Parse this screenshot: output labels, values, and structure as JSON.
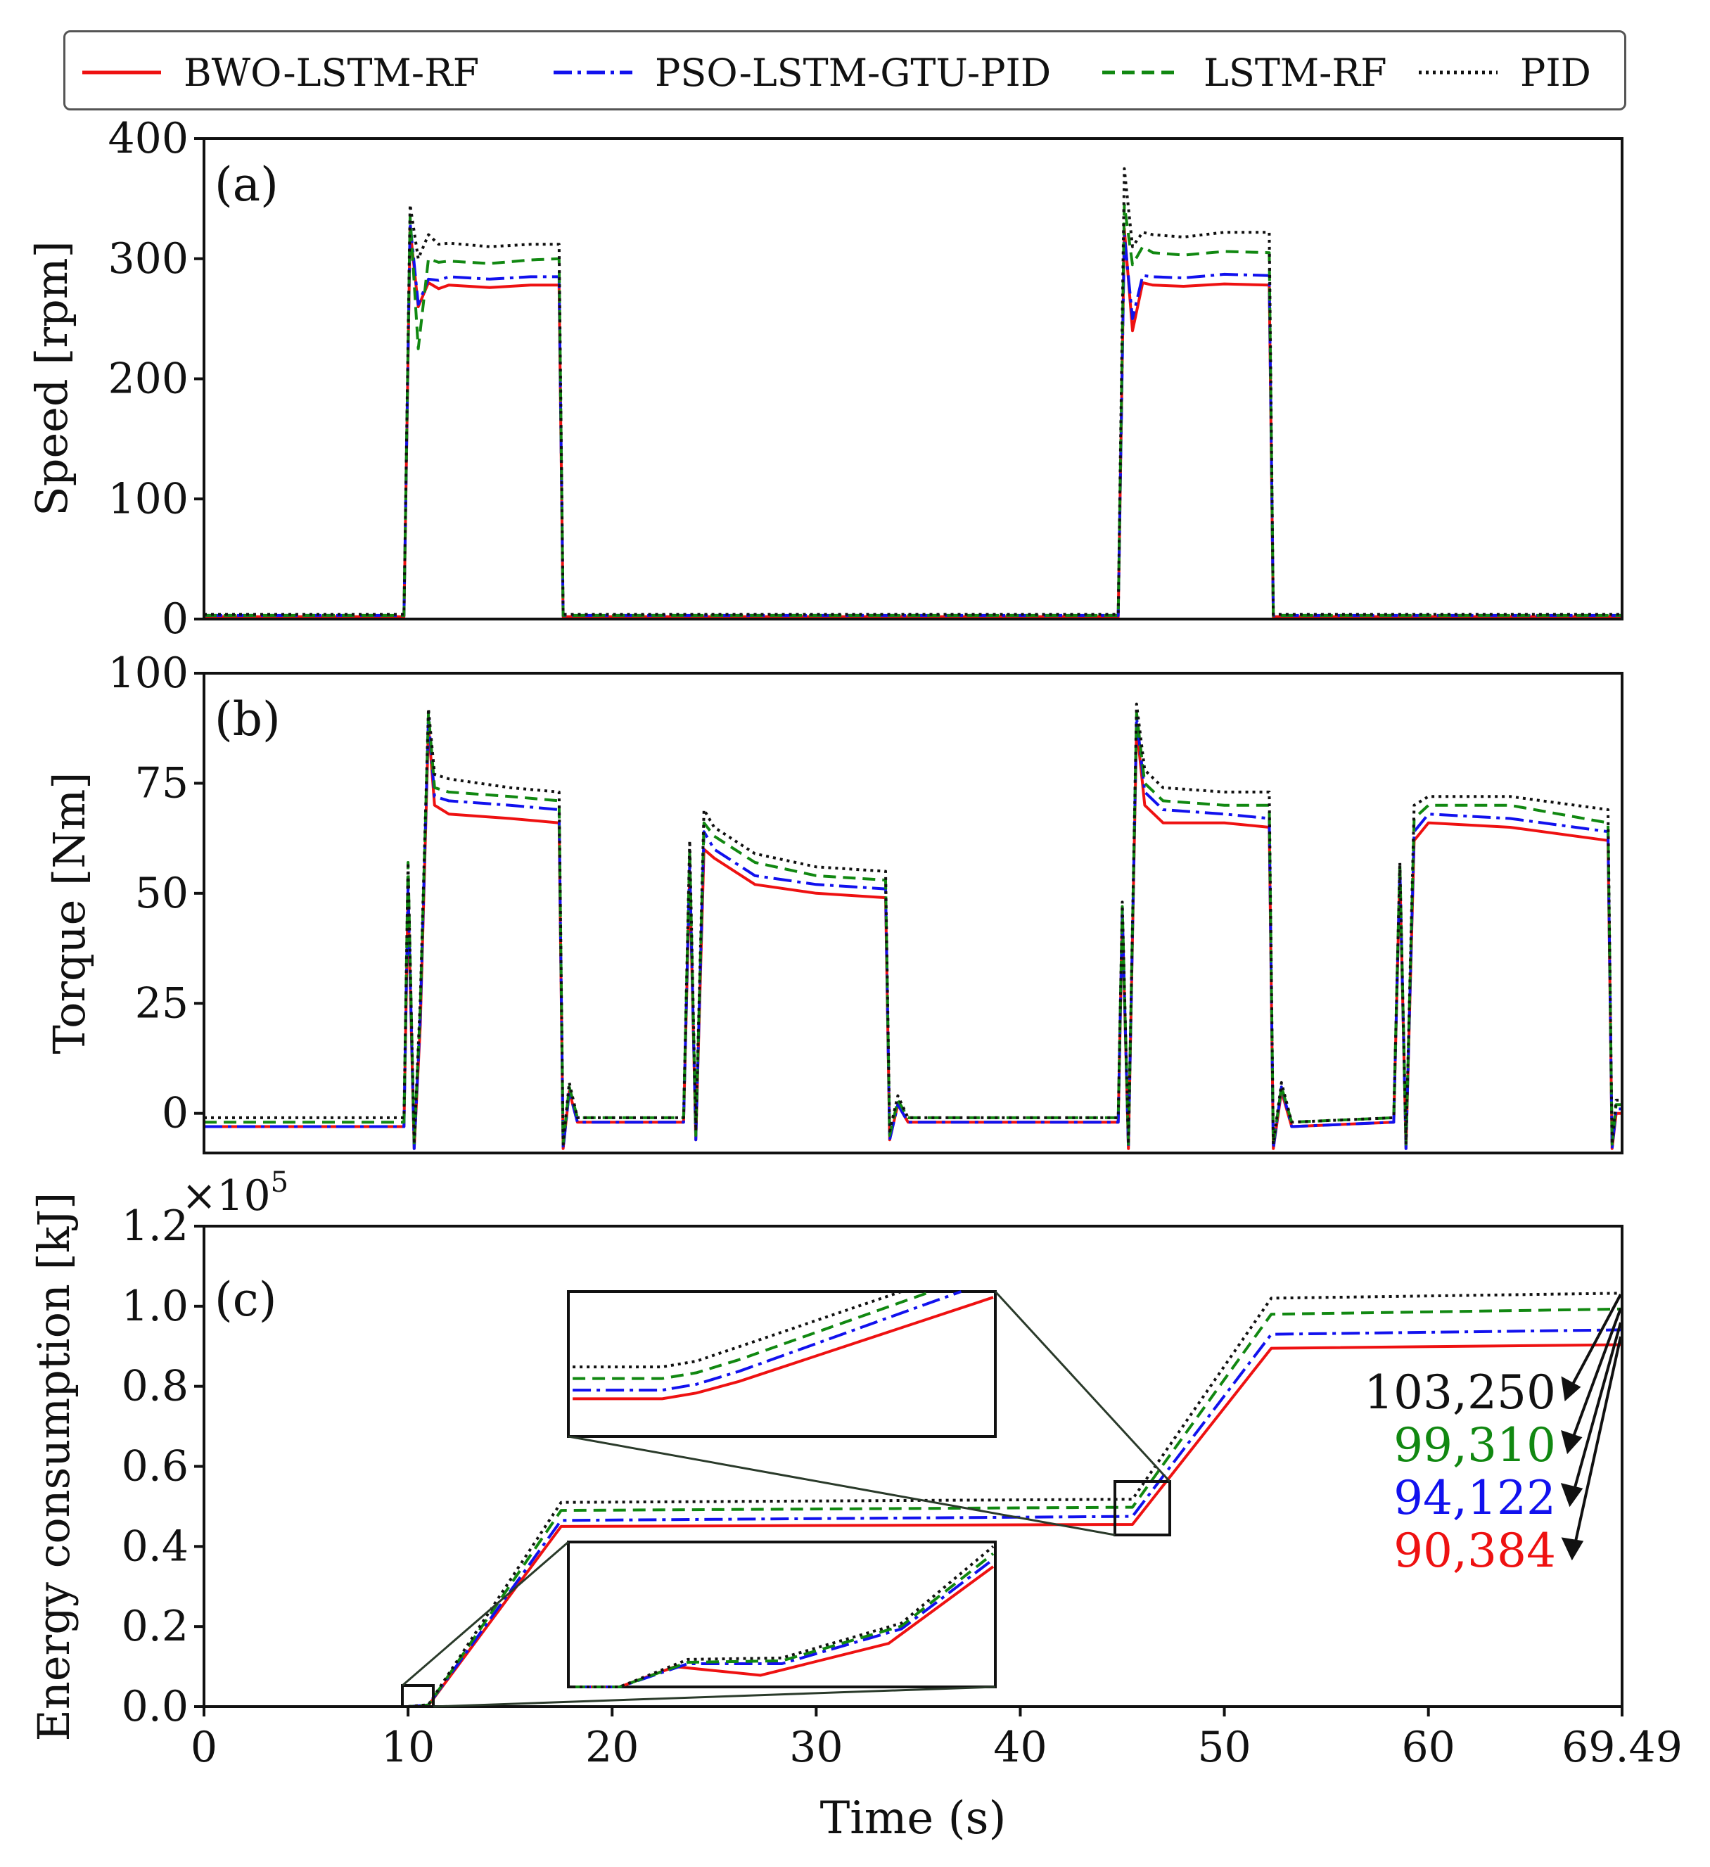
{
  "legend": {
    "items": [
      {
        "label": "BWO-LSTM-RF",
        "color": "#ee1111",
        "dash": "solid"
      },
      {
        "label": "PSO-LSTM-GTU-PID",
        "color": "#1111ee",
        "dash": "dashdot"
      },
      {
        "label": "LSTM-RF",
        "color": "#118811",
        "dash": "dashed"
      },
      {
        "label": "PID",
        "color": "#111111",
        "dash": "dotted"
      }
    ]
  },
  "colors": {
    "bwo": "#ee1111",
    "pso": "#1111ee",
    "lstm": "#118811",
    "pid": "#111111"
  },
  "chart_data": [
    {
      "type": "line",
      "panel_label": "(a)",
      "title": "",
      "xlabel": "",
      "ylabel": "Speed [rpm]",
      "xlim": [
        0,
        69.49
      ],
      "ylim": [
        0,
        400
      ],
      "yticks": [
        0,
        100,
        200,
        300,
        400
      ],
      "x": [
        0,
        9.8,
        10.1,
        10.5,
        11.0,
        11.5,
        12,
        14,
        16,
        17.4,
        17.6,
        18,
        30,
        44.8,
        45.1,
        45.5,
        46.0,
        46.5,
        48,
        50,
        52.2,
        52.4,
        53,
        69.49
      ],
      "series": [
        {
          "name": "BWO-LSTM-RF",
          "values": [
            2,
            2,
            325,
            260,
            280,
            275,
            278,
            276,
            278,
            278,
            2,
            2,
            2,
            2,
            325,
            240,
            280,
            278,
            277,
            279,
            278,
            2,
            2,
            2
          ]
        },
        {
          "name": "PSO-LSTM-GTU-PID",
          "values": [
            3,
            3,
            330,
            262,
            283,
            282,
            285,
            283,
            285,
            285,
            3,
            3,
            3,
            3,
            320,
            250,
            286,
            285,
            284,
            287,
            286,
            3,
            3,
            3
          ]
        },
        {
          "name": "LSTM-RF",
          "values": [
            3,
            3,
            335,
            225,
            300,
            297,
            298,
            296,
            299,
            300,
            3,
            3,
            3,
            3,
            345,
            295,
            310,
            305,
            303,
            306,
            305,
            3,
            3,
            3
          ]
        },
        {
          "name": "PID",
          "values": [
            4,
            4,
            345,
            300,
            320,
            312,
            313,
            310,
            312,
            312,
            4,
            4,
            4,
            4,
            375,
            310,
            322,
            320,
            318,
            322,
            322,
            4,
            4,
            4
          ]
        }
      ]
    },
    {
      "type": "line",
      "panel_label": "(b)",
      "title": "",
      "xlabel": "",
      "ylabel": "Torque [Nm]",
      "xlim": [
        0,
        69.49
      ],
      "ylim": [
        -9,
        100
      ],
      "yticks": [
        0,
        25,
        50,
        75,
        100
      ],
      "x": [
        0,
        9.8,
        10.0,
        10.3,
        10.6,
        11.0,
        11.3,
        12,
        15,
        17.4,
        17.6,
        17.9,
        18.3,
        23.5,
        23.8,
        24.1,
        24.5,
        25,
        27,
        30,
        33.4,
        33.6,
        34.0,
        34.5,
        44.8,
        45.0,
        45.3,
        45.7,
        46.1,
        47,
        50,
        52.2,
        52.4,
        52.8,
        53.3,
        58.3,
        58.6,
        58.9,
        59.3,
        60,
        64,
        68.8,
        69.0,
        69.2,
        69.49
      ],
      "series": [
        {
          "name": "BWO-LSTM-RF",
          "values": [
            -3,
            -3,
            50,
            -8,
            20,
            88,
            70,
            68,
            67,
            66,
            -8,
            5,
            -2,
            -2,
            55,
            -6,
            60,
            58,
            52,
            50,
            49,
            -6,
            2,
            -2,
            -2,
            45,
            -8,
            88,
            70,
            66,
            66,
            65,
            -8,
            5,
            -3,
            -2,
            55,
            -8,
            62,
            66,
            65,
            62,
            -8,
            0,
            0
          ]
        },
        {
          "name": "PSO-LSTM-GTU-PID",
          "values": [
            -3,
            -3,
            52,
            -8,
            22,
            90,
            72,
            71,
            70,
            69,
            -8,
            5,
            -2,
            -2,
            57,
            -6,
            64,
            60,
            54,
            52,
            51,
            -6,
            2,
            -2,
            -2,
            46,
            -8,
            90,
            73,
            69,
            68,
            67,
            -8,
            6,
            -3,
            -2,
            56,
            -8,
            64,
            68,
            67,
            64,
            -8,
            1,
            1
          ]
        },
        {
          "name": "LSTM-RF",
          "values": [
            -2,
            -2,
            57,
            -7,
            24,
            91,
            74,
            73,
            72,
            71,
            -7,
            6,
            -1,
            -1,
            60,
            -5,
            66,
            63,
            57,
            54,
            53,
            -5,
            3,
            -1,
            -1,
            47,
            -7,
            91,
            75,
            71,
            70,
            70,
            -7,
            6,
            -2,
            -1,
            57,
            -7,
            67,
            70,
            70,
            66,
            -7,
            2,
            2
          ]
        },
        {
          "name": "PID",
          "values": [
            -1,
            -1,
            57,
            -7,
            26,
            92,
            77,
            76,
            74,
            73,
            -7,
            7,
            -1,
            -1,
            62,
            -4,
            69,
            65,
            59,
            56,
            55,
            -4,
            4,
            -1,
            -1,
            48,
            -7,
            93,
            78,
            74,
            73,
            73,
            -7,
            7,
            -2,
            -1,
            57,
            -7,
            70,
            72,
            72,
            69,
            -7,
            3,
            3
          ]
        }
      ]
    },
    {
      "type": "line",
      "panel_label": "(c)",
      "title": "",
      "xlabel": "Time (s)",
      "ylabel": "Energy consumption [kJ]",
      "y_multiplier": "×10",
      "y_multiplier_exp": "5",
      "xlim": [
        0,
        69.49
      ],
      "ylim": [
        0,
        1.2
      ],
      "xticks": [
        0,
        10,
        20,
        30,
        40,
        50,
        60,
        69.49
      ],
      "xtick_labels": [
        "0",
        "10",
        "20",
        "30",
        "40",
        "50",
        "60",
        "69.49"
      ],
      "yticks": [
        0.0,
        0.2,
        0.4,
        0.6,
        0.8,
        1.0,
        1.2
      ],
      "ytick_labels": [
        "0.0",
        "0.2",
        "0.4",
        "0.6",
        "0.8",
        "1.0",
        "1.2"
      ],
      "x": [
        0,
        10.0,
        11.0,
        17.5,
        45.5,
        52.3,
        69.49
      ],
      "series": [
        {
          "name": "BWO-LSTM-RF",
          "values": [
            0,
            0,
            0.003,
            0.45,
            0.455,
            0.895,
            0.904
          ]
        },
        {
          "name": "PSO-LSTM-GTU-PID",
          "values": [
            0,
            0,
            0.004,
            0.465,
            0.475,
            0.93,
            0.941
          ]
        },
        {
          "name": "LSTM-RF",
          "values": [
            0,
            0,
            0.004,
            0.49,
            0.498,
            0.98,
            0.993
          ]
        },
        {
          "name": "PID",
          "values": [
            0,
            0,
            0.005,
            0.51,
            0.518,
            1.02,
            1.0325
          ]
        }
      ],
      "final_values": [
        {
          "label": "103,250",
          "color": "#111111"
        },
        {
          "label": "99,310",
          "color": "#118811"
        },
        {
          "label": "94,122",
          "color": "#1111ee"
        },
        {
          "label": "90,384",
          "color": "#ee1111"
        }
      ]
    }
  ]
}
